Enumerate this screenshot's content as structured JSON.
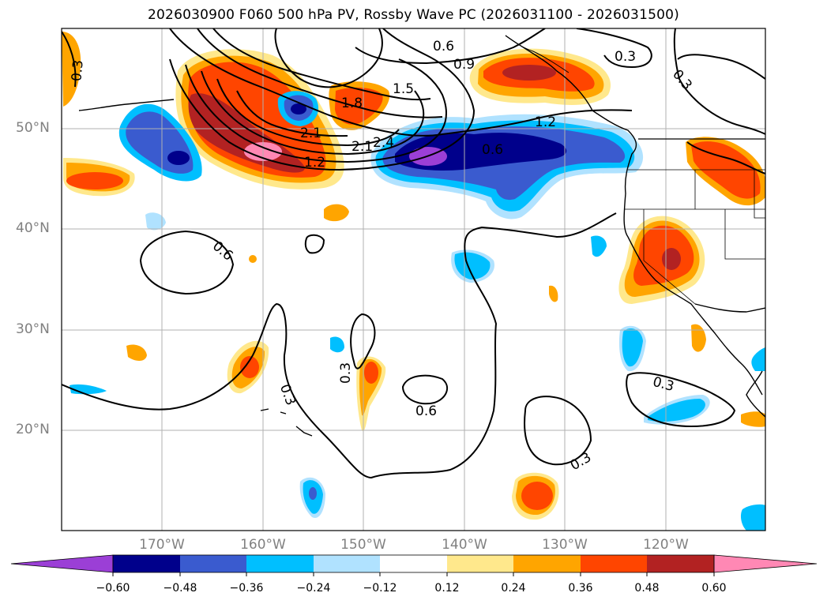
{
  "title": "2026030900 F060 500 hPa PV, Rossby Wave PC (2026031100 - 2026031500)",
  "axes": {
    "lat_labels": [
      "50°N",
      "40°N",
      "30°N",
      "20°N"
    ],
    "lon_labels": [
      "170°W",
      "160°W",
      "150°W",
      "140°W",
      "130°W",
      "120°W"
    ],
    "lon_range": [
      "180°",
      "110°W"
    ],
    "lat_range": [
      "10°N",
      "60°N"
    ],
    "grid": true
  },
  "colorbar": {
    "ticks": [
      "−0.60",
      "−0.48",
      "−0.36",
      "−0.24",
      "−0.12",
      "0.12",
      "0.24",
      "0.36",
      "0.48",
      "0.60"
    ],
    "colors": [
      "#9b3fd6",
      "#00008b",
      "#3a5bcf",
      "#00bfff",
      "#b0e2ff",
      "#ffffff",
      "#ffe88c",
      "#ffa500",
      "#ff4500",
      "#b22222",
      "#ff88b4"
    ]
  },
  "contour_labels": [
    "0.3",
    "0.6",
    "0.9",
    "0.3",
    "0.3",
    "1.5",
    "1.8",
    "2.1",
    "2.1",
    "2.4",
    "1.2",
    "1.2",
    "0.6",
    "0.6",
    "0.3",
    "0.3",
    "0.6",
    "0.3",
    "0.3"
  ],
  "chart_data": {
    "type": "heatmap",
    "title": "2026030900 F060 500 hPa PV, Rossby Wave PC (2026031100 - 2026031500)",
    "fill_variable": "Rossby Wave PC",
    "contour_variable": "500 hPa PV",
    "contour_levels": [
      0.3,
      0.6,
      0.9,
      1.2,
      1.5,
      1.8,
      2.1,
      2.4
    ],
    "color_levels": [
      -0.6,
      -0.48,
      -0.36,
      -0.24,
      -0.12,
      0.12,
      0.24,
      0.36,
      0.48,
      0.6
    ],
    "lon_range": [
      -180,
      -110
    ],
    "lat_range": [
      10,
      60
    ],
    "features": [
      {
        "name": "positive anomaly north Pacific",
        "lon": -160,
        "lat": 48,
        "max": 0.6
      },
      {
        "name": "negative anomaly gulf of Alaska",
        "lon": -145,
        "lat": 47,
        "min": -0.6
      },
      {
        "name": "positive anomaly British Columbia",
        "lon": -133,
        "lat": 55,
        "max": 0.48
      },
      {
        "name": "positive anomaly California",
        "lon": -120,
        "lat": 37,
        "max": 0.48
      },
      {
        "name": "PV maximum",
        "lon": -155,
        "lat": 49,
        "value": 2.4
      }
    ]
  }
}
